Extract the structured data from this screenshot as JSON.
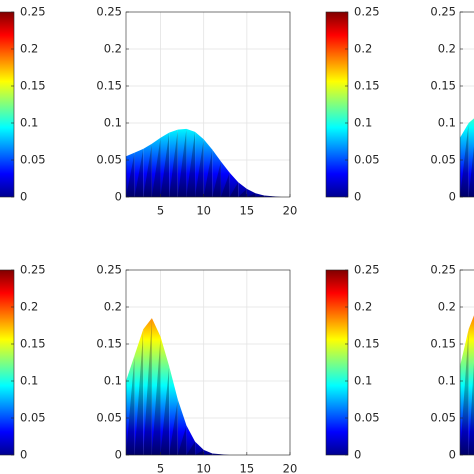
{
  "chart_data": [
    {
      "type": "area",
      "colorbar": {
        "lim": [
          0,
          0.25
        ],
        "ticks": [
          0,
          0.05,
          0.1,
          0.15,
          0.2,
          0.25
        ]
      },
      "xlim": [
        1,
        20
      ],
      "ylim": [
        0,
        0.25
      ],
      "xticks": [
        5,
        10,
        15,
        20
      ],
      "yticks": [
        0,
        0.05,
        0.1,
        0.15,
        0.2,
        0.25
      ],
      "grid": true,
      "x": [
        1,
        2,
        3,
        4,
        5,
        6,
        7,
        8,
        9,
        10,
        11,
        12,
        13,
        14,
        15,
        16,
        17,
        18,
        19,
        20
      ],
      "values": [
        0.055,
        0.06,
        0.065,
        0.072,
        0.08,
        0.087,
        0.091,
        0.092,
        0.088,
        0.078,
        0.064,
        0.048,
        0.033,
        0.02,
        0.011,
        0.005,
        0.002,
        0.001,
        0,
        0
      ]
    },
    {
      "type": "area",
      "colorbar": {
        "lim": [
          0,
          0.25
        ],
        "ticks": [
          0,
          0.05,
          0.1,
          0.15,
          0.2,
          0.25
        ]
      },
      "xlim": [
        1,
        20
      ],
      "ylim": [
        0,
        0.25
      ],
      "yticks": [
        0,
        0.05,
        0.1,
        0.15,
        0.2,
        0.25
      ],
      "grid": true,
      "x": [
        1,
        2,
        3
      ],
      "values": [
        0.08,
        0.1,
        0.11
      ]
    },
    {
      "type": "area",
      "colorbar": {
        "lim": [
          0,
          0.25
        ],
        "ticks": [
          0,
          0.05,
          0.1,
          0.15,
          0.2,
          0.25
        ]
      },
      "xlim": [
        1,
        20
      ],
      "ylim": [
        0,
        0.25
      ],
      "xticks": [
        5,
        10,
        15,
        20
      ],
      "yticks": [
        0,
        0.05,
        0.1,
        0.15,
        0.2,
        0.25
      ],
      "grid": true,
      "x": [
        1,
        2,
        3,
        4,
        5,
        6,
        7,
        8,
        9,
        10,
        11,
        12,
        13,
        14,
        15,
        16,
        17,
        18,
        19,
        20
      ],
      "values": [
        0.1,
        0.135,
        0.17,
        0.185,
        0.16,
        0.12,
        0.075,
        0.04,
        0.018,
        0.007,
        0.002,
        0.001,
        0,
        0,
        0,
        0,
        0,
        0,
        0,
        0
      ]
    },
    {
      "type": "area",
      "colorbar": {
        "lim": [
          0,
          0.25
        ],
        "ticks": [
          0,
          0.05,
          0.1,
          0.15,
          0.2,
          0.25
        ]
      },
      "xlim": [
        1,
        20
      ],
      "ylim": [
        0,
        0.25
      ],
      "yticks": [
        0,
        0.05,
        0.1,
        0.15,
        0.2,
        0.25
      ],
      "grid": true,
      "x": [
        1,
        2,
        3
      ],
      "values": [
        0.12,
        0.17,
        0.2
      ]
    }
  ]
}
